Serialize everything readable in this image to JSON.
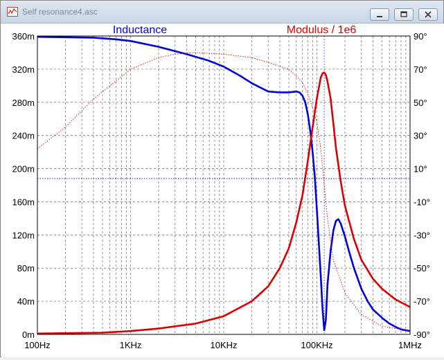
{
  "window": {
    "title": "Self resonance4.asc",
    "buttons": {
      "minimize": "minimize",
      "restore": "restore",
      "close": "close"
    }
  },
  "chart_data": {
    "type": "line",
    "xscale": "log",
    "xlim": [
      100,
      1000000
    ],
    "x_ticks": [
      "100Hz",
      "1KHz",
      "10KHz",
      "100KHz",
      "1MHz"
    ],
    "left_axis": {
      "ylim": [
        0,
        0.36
      ],
      "ticks": [
        "0m",
        "40m",
        "80m",
        "120m",
        "160m",
        "200m",
        "240m",
        "280m",
        "320m",
        "360m"
      ]
    },
    "right_axis": {
      "ylim": [
        -90,
        90
      ],
      "ticks": [
        "-90°",
        "-70°",
        "-50°",
        "-30°",
        "-10°",
        "10°",
        "30°",
        "50°",
        "70°",
        "90°"
      ]
    },
    "grid": true,
    "cursor_x": 120000,
    "trace_labels": [
      "Inductance",
      "Modulus / 1e6"
    ],
    "series": [
      {
        "name": "Inductance",
        "color": "#0000dd",
        "axis": "left",
        "x": [
          100,
          200,
          400,
          700,
          1000,
          2000,
          4000,
          7000,
          10000,
          15000,
          20000,
          30000,
          40000,
          50000,
          60000,
          65000,
          70000,
          75000,
          80000,
          85000,
          90000,
          95000,
          100000,
          105000,
          110000,
          115000,
          120000,
          125000,
          130000,
          140000,
          150000,
          160000,
          170000,
          180000,
          200000,
          220000,
          250000,
          300000,
          350000,
          400000,
          500000,
          600000,
          700000,
          800000,
          1000000
        ],
        "y": [
          0.359,
          0.3585,
          0.358,
          0.356,
          0.354,
          0.347,
          0.338,
          0.33,
          0.323,
          0.312,
          0.303,
          0.293,
          0.292,
          0.292,
          0.293,
          0.292,
          0.288,
          0.28,
          0.265,
          0.245,
          0.22,
          0.19,
          0.15,
          0.11,
          0.07,
          0.03,
          0.005,
          0.018,
          0.06,
          0.1,
          0.125,
          0.137,
          0.139,
          0.134,
          0.118,
          0.101,
          0.08,
          0.055,
          0.04,
          0.03,
          0.02,
          0.013,
          0.009,
          0.006,
          0.004
        ]
      },
      {
        "name": "Modulus / 1e6",
        "color": "#dd0000",
        "axis": "left",
        "x": [
          100,
          500,
          1000,
          2000,
          5000,
          10000,
          20000,
          30000,
          40000,
          50000,
          60000,
          70000,
          80000,
          90000,
          100000,
          110000,
          115000,
          120000,
          125000,
          130000,
          140000,
          150000,
          160000,
          180000,
          200000,
          250000,
          300000,
          400000,
          500000,
          700000,
          1000000
        ],
        "y": [
          0.001,
          0.002,
          0.004,
          0.007,
          0.013,
          0.022,
          0.04,
          0.058,
          0.08,
          0.104,
          0.135,
          0.168,
          0.21,
          0.25,
          0.285,
          0.31,
          0.315,
          0.316,
          0.313,
          0.305,
          0.285,
          0.255,
          0.225,
          0.185,
          0.155,
          0.115,
          0.09,
          0.067,
          0.055,
          0.042,
          0.033
        ]
      },
      {
        "name": "Phase",
        "color": "#dd0000",
        "axis": "right",
        "style": "dotted",
        "x": [
          100,
          200,
          400,
          700,
          1000,
          2000,
          3000,
          5000,
          10000,
          20000,
          30000,
          50000,
          70000,
          80000,
          90000,
          100000,
          110000,
          120000,
          130000,
          150000,
          200000,
          300000,
          500000,
          1000000
        ],
        "y": [
          22,
          35,
          52,
          63,
          70,
          77,
          79,
          80,
          79,
          77,
          74,
          70,
          62,
          55,
          47,
          38,
          22,
          0,
          -20,
          -45,
          -65,
          -78,
          -85,
          -88
        ]
      },
      {
        "name": "Phase",
        "color": "#0000dd",
        "axis": "right",
        "style": "dotted",
        "x": [
          100,
          1000000
        ],
        "y": [
          4,
          4
        ]
      }
    ]
  }
}
